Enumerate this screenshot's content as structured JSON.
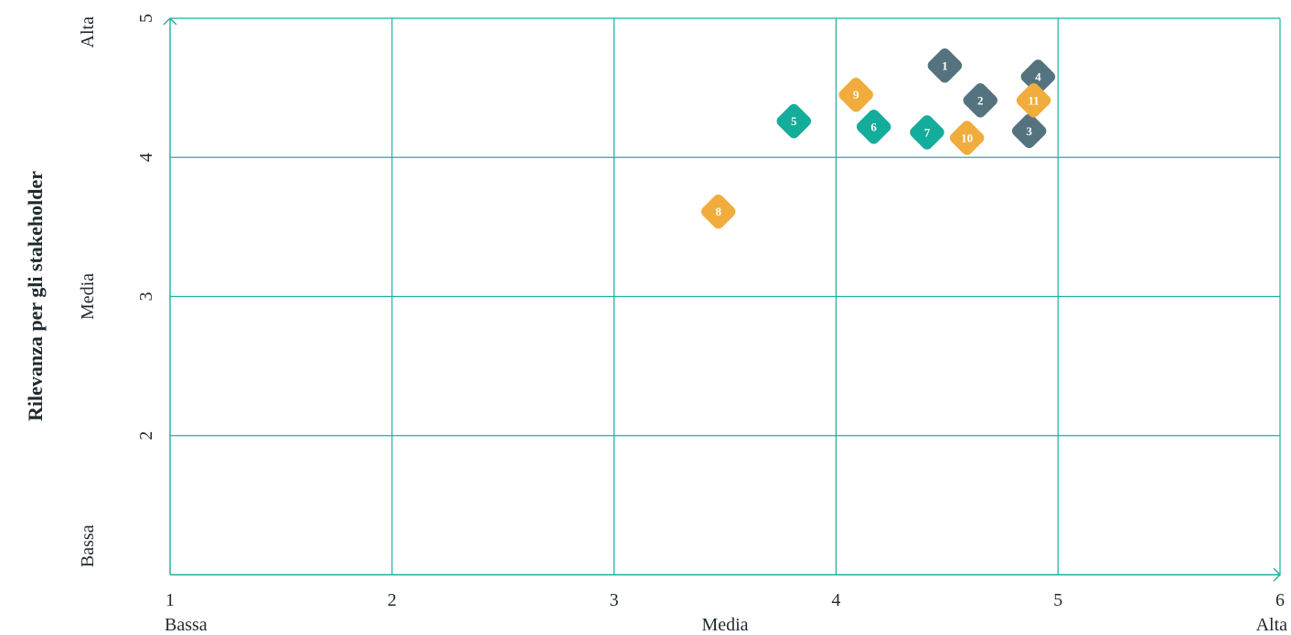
{
  "chart_data": {
    "type": "scatter",
    "title": "",
    "xlabel": "",
    "ylabel": "Rilevanza per gli stakeholder",
    "xlim": [
      1,
      6
    ],
    "ylim": [
      1,
      5
    ],
    "x_ticks": [
      "1",
      "2",
      "3",
      "4",
      "5",
      "6"
    ],
    "y_ticks": [
      "2",
      "3",
      "4",
      "5"
    ],
    "x_categories": [
      "Bassa",
      "Media",
      "Alta"
    ],
    "y_categories": [
      "Bassa",
      "Media",
      "Alta"
    ],
    "grid": true,
    "colors": {
      "grid": "#1ab0a0",
      "teal": "#14ad9b",
      "slate": "#55737e",
      "yellow": "#f0ad3e"
    },
    "points": [
      {
        "label": "1",
        "x": 4.49,
        "y": 4.66,
        "color": "slate"
      },
      {
        "label": "2",
        "x": 4.65,
        "y": 4.41,
        "color": "slate"
      },
      {
        "label": "3",
        "x": 4.87,
        "y": 4.19,
        "color": "slate"
      },
      {
        "label": "4",
        "x": 4.91,
        "y": 4.58,
        "color": "slate"
      },
      {
        "label": "5",
        "x": 3.81,
        "y": 4.26,
        "color": "teal"
      },
      {
        "label": "6",
        "x": 4.17,
        "y": 4.22,
        "color": "teal"
      },
      {
        "label": "7",
        "x": 4.41,
        "y": 4.18,
        "color": "teal"
      },
      {
        "label": "8",
        "x": 3.47,
        "y": 3.61,
        "color": "yellow"
      },
      {
        "label": "9",
        "x": 4.09,
        "y": 4.45,
        "color": "yellow"
      },
      {
        "label": "10",
        "x": 4.59,
        "y": 4.14,
        "color": "yellow"
      },
      {
        "label": "11",
        "x": 4.89,
        "y": 4.41,
        "color": "yellow"
      }
    ]
  }
}
